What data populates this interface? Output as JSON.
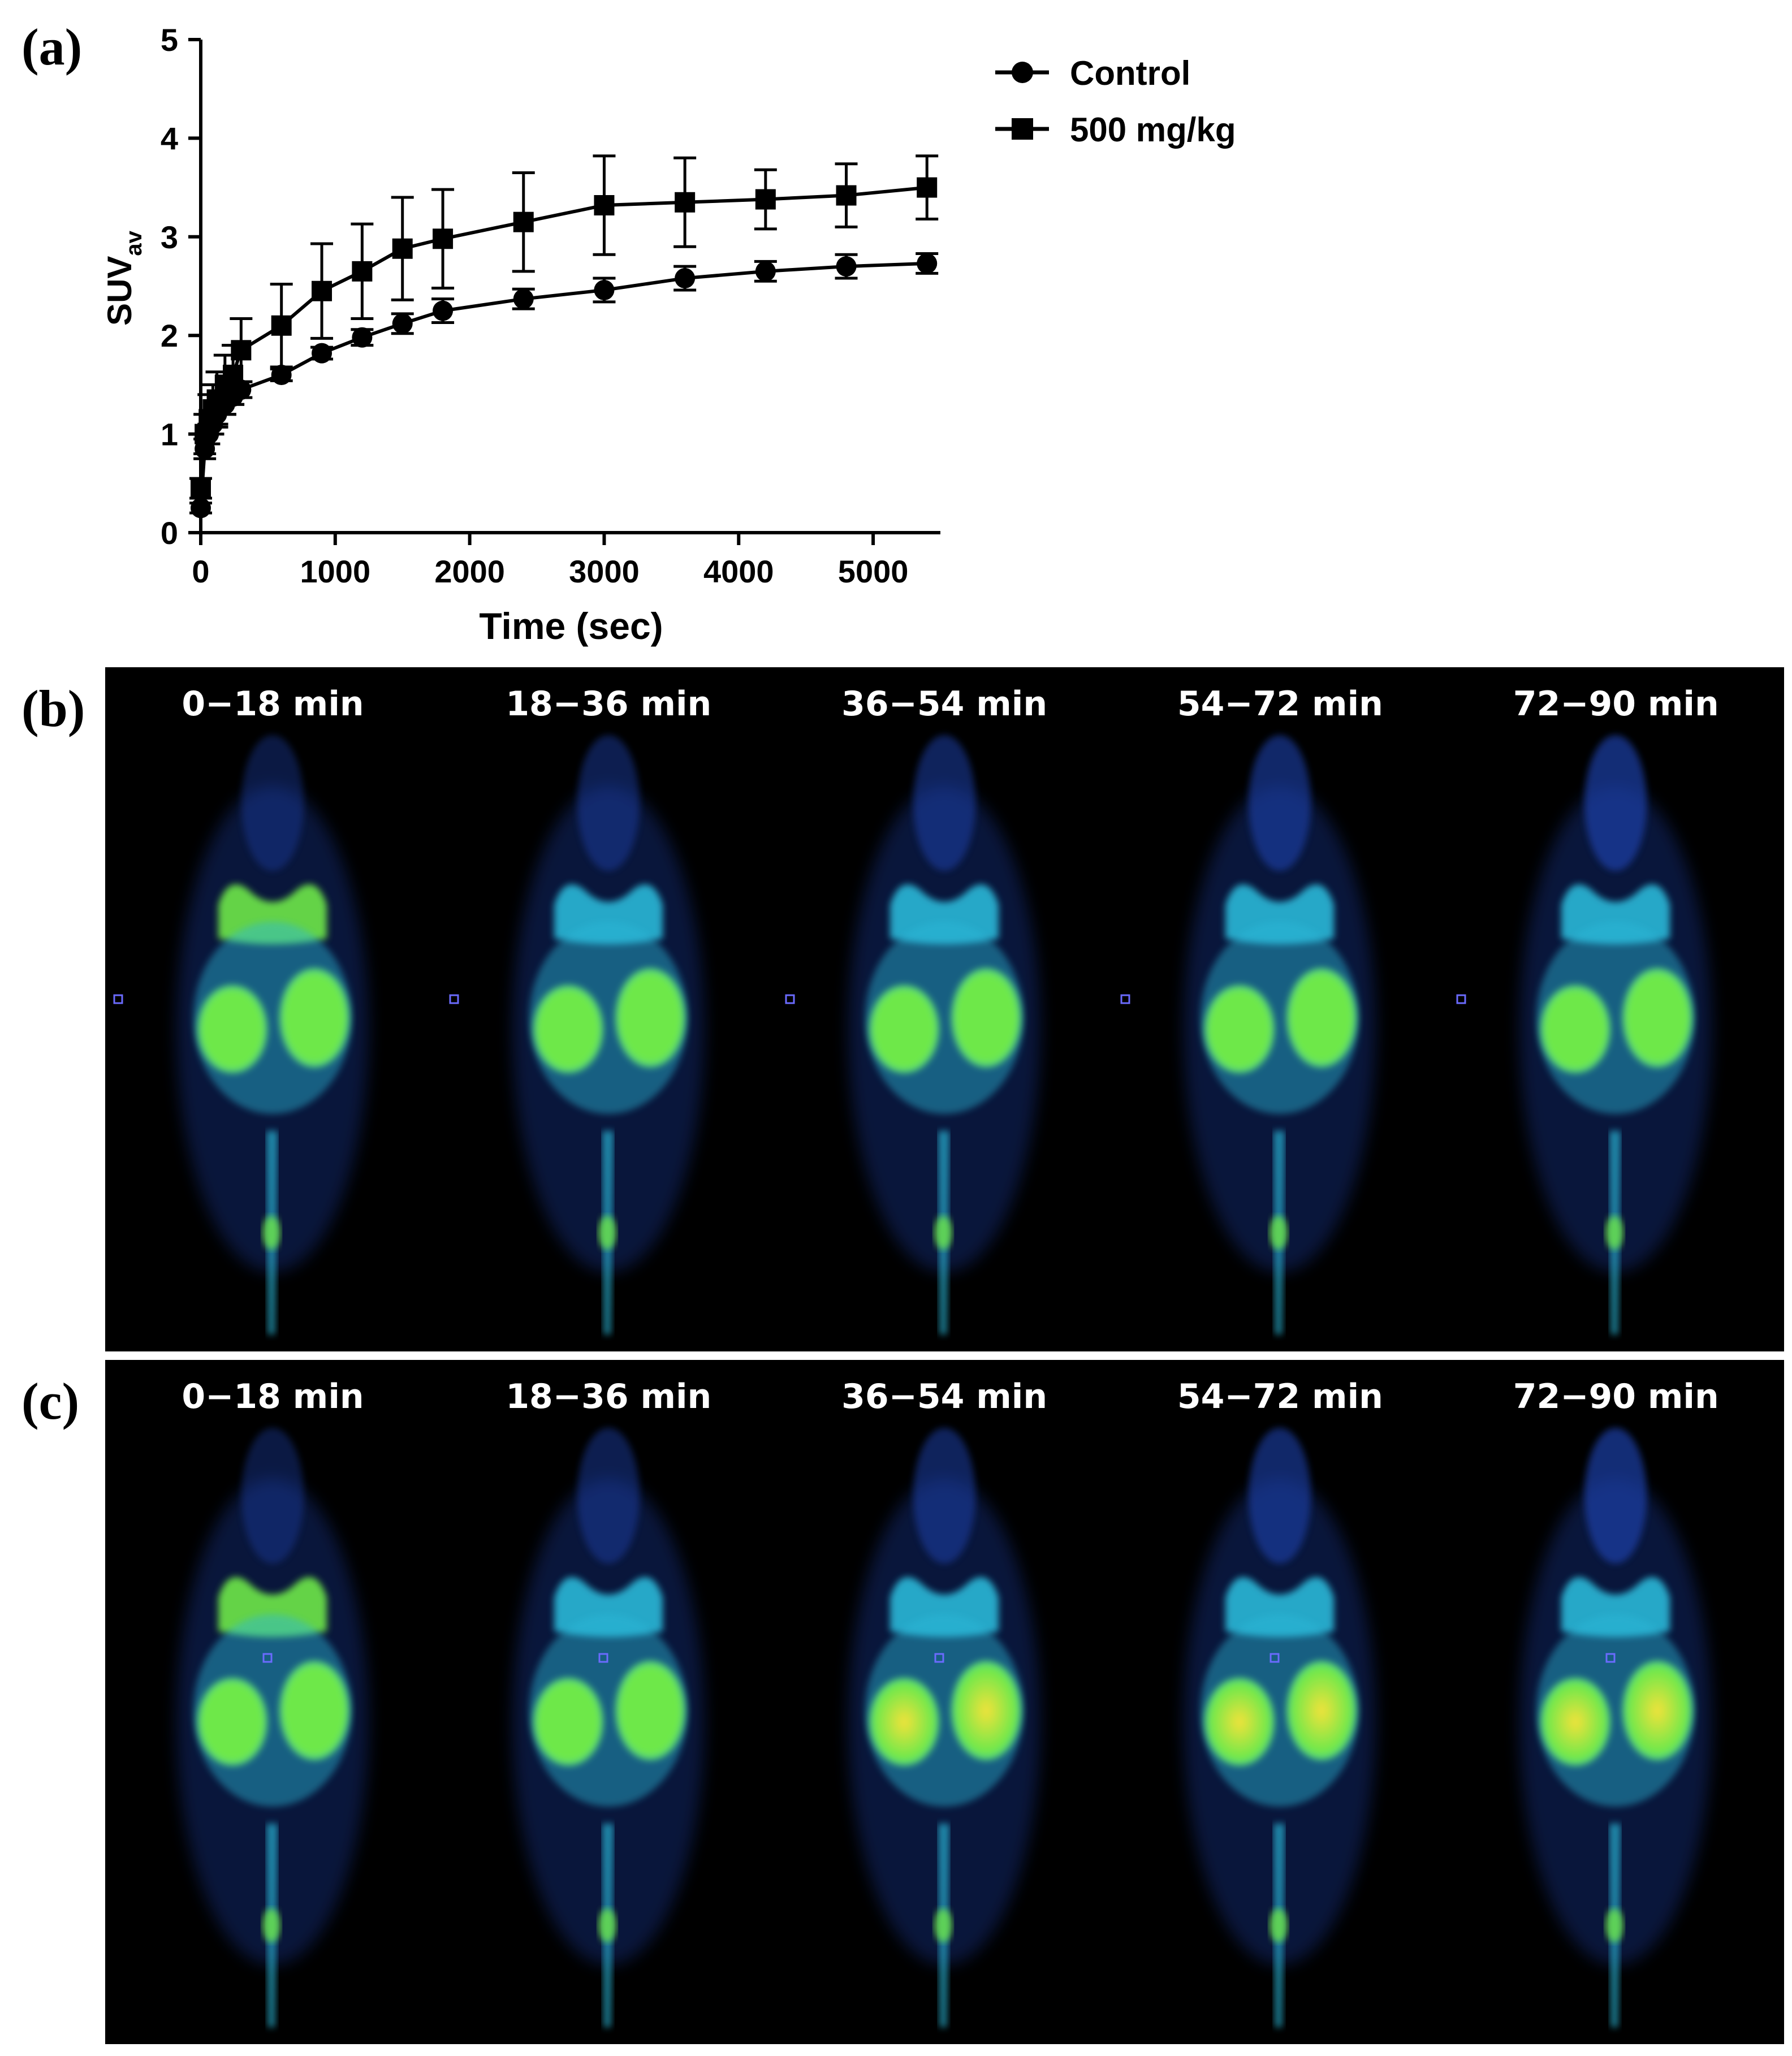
{
  "panels": {
    "a": "(a)",
    "b": "(b)",
    "c": "(c)"
  },
  "chart_data": {
    "type": "line",
    "ylabel_main": "SUV",
    "ylabel_sub": "av",
    "xlabel": "Time (sec)",
    "xlim": [
      0,
      5500
    ],
    "ylim": [
      0,
      5
    ],
    "x_ticks": [
      0,
      1000,
      2000,
      3000,
      4000,
      5000
    ],
    "y_ticks": [
      0,
      1,
      2,
      3,
      4,
      5
    ],
    "legend_position": "top-right",
    "series": [
      {
        "name": "Control",
        "marker": "circle",
        "x": [
          0,
          30,
          60,
          90,
          120,
          180,
          240,
          300,
          600,
          900,
          1200,
          1500,
          1800,
          2400,
          3000,
          3600,
          4200,
          4800,
          5400
        ],
        "y": [
          0.25,
          0.85,
          1.0,
          1.1,
          1.2,
          1.3,
          1.38,
          1.45,
          1.6,
          1.82,
          1.98,
          2.12,
          2.25,
          2.37,
          2.46,
          2.58,
          2.65,
          2.7,
          2.73
        ],
        "err": [
          0.05,
          0.1,
          0.1,
          0.1,
          0.1,
          0.1,
          0.08,
          0.08,
          0.06,
          0.06,
          0.08,
          0.1,
          0.12,
          0.1,
          0.12,
          0.12,
          0.1,
          0.12,
          0.1
        ]
      },
      {
        "name": "500 mg/kg",
        "marker": "square",
        "x": [
          0,
          30,
          60,
          90,
          120,
          180,
          240,
          300,
          600,
          900,
          1200,
          1500,
          1800,
          2400,
          3000,
          3600,
          4200,
          4800,
          5400
        ],
        "y": [
          0.45,
          1.0,
          1.15,
          1.25,
          1.35,
          1.5,
          1.6,
          1.85,
          2.1,
          2.45,
          2.65,
          2.88,
          2.98,
          3.15,
          3.32,
          3.35,
          3.38,
          3.42,
          3.5
        ],
        "err": [
          0.1,
          0.2,
          0.25,
          0.25,
          0.28,
          0.3,
          0.3,
          0.32,
          0.42,
          0.48,
          0.48,
          0.52,
          0.5,
          0.5,
          0.5,
          0.45,
          0.3,
          0.32,
          0.32
        ]
      }
    ]
  },
  "pet_rows": [
    {
      "id": "b",
      "times": [
        "0−18 min",
        "18−36 min",
        "36−54 min",
        "54−72 min",
        "72−90 min"
      ]
    },
    {
      "id": "c",
      "times": [
        "0−18 min",
        "18−36 min",
        "36−54 min",
        "54−72 min",
        "72−90 min"
      ]
    }
  ],
  "colors": {
    "line": "#000000",
    "pet_background": "#000000",
    "pet_low": "#1a3fa8",
    "pet_mid": "#2bb8d8",
    "pet_high": "#6ee84a",
    "pet_peak": "#f2e23a",
    "roi_marker": "#6b6bff"
  }
}
